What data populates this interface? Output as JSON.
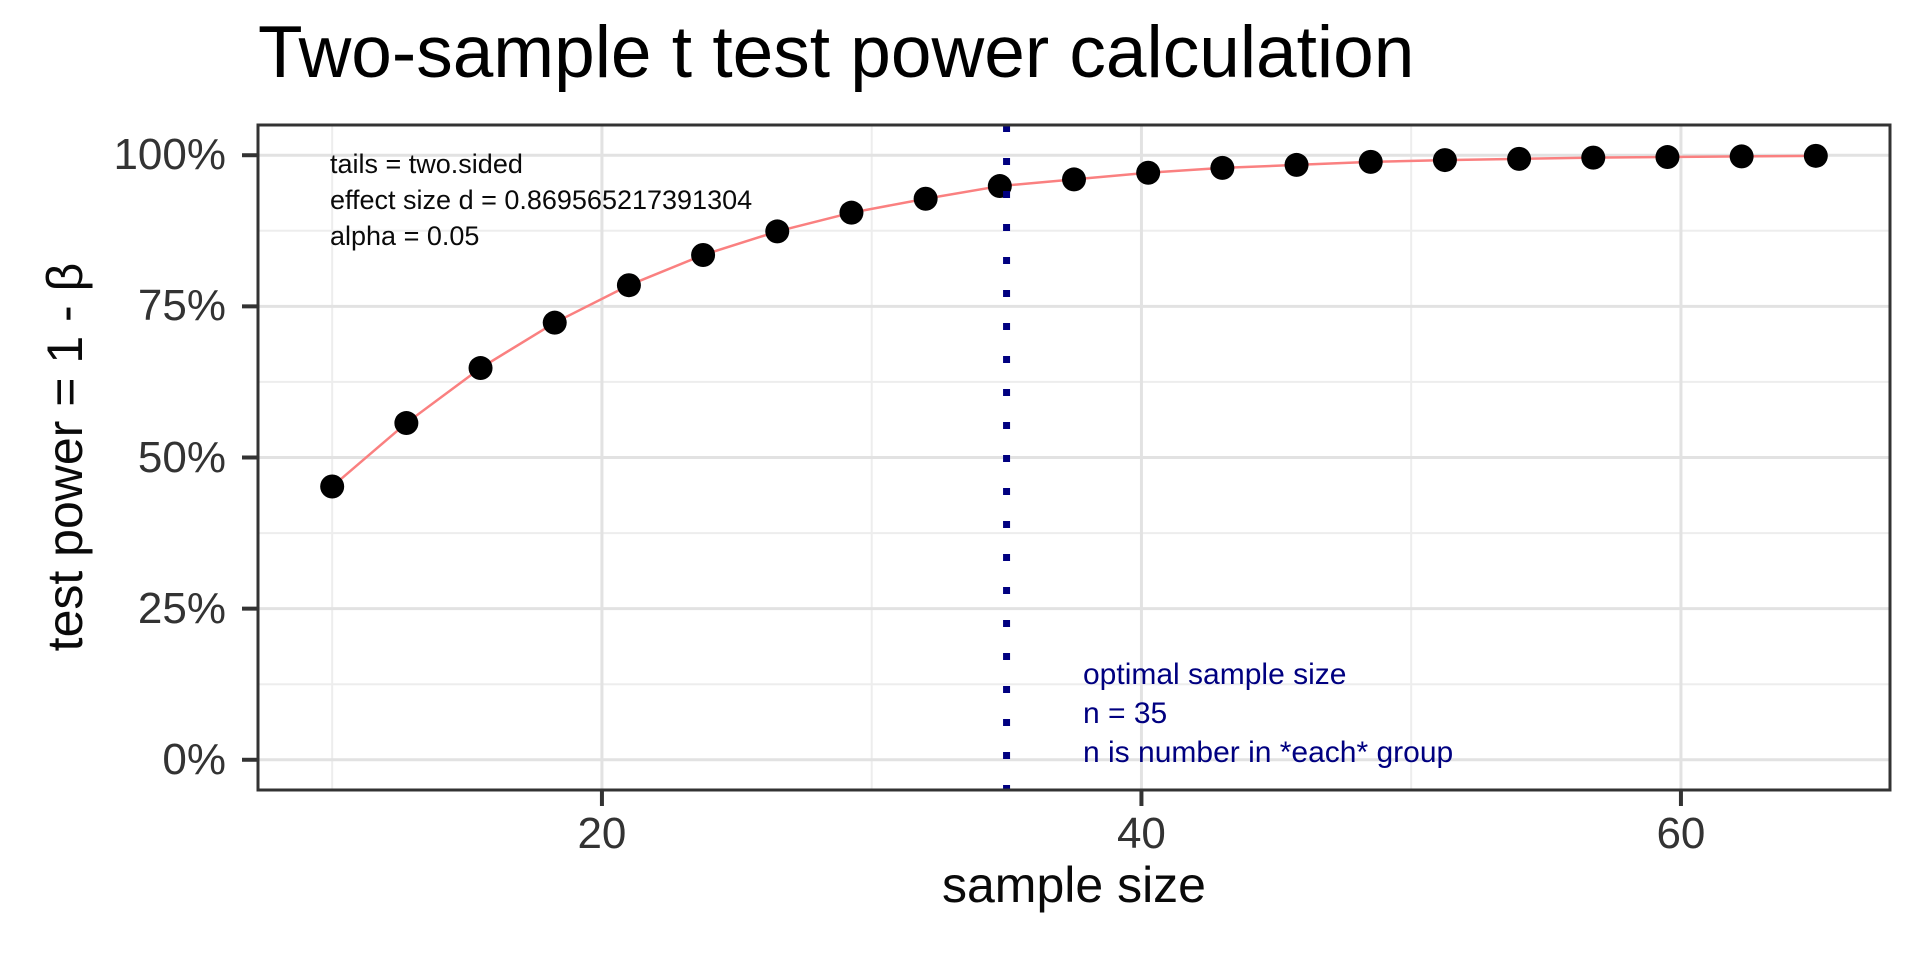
{
  "title": "Two-sample t test power calculation",
  "chart_data": {
    "type": "line",
    "title": "Two-sample t test power calculation",
    "xlabel": "sample size",
    "ylabel": "test power = 1 - β",
    "x": [
      10,
      12.75,
      15.5,
      18.25,
      21,
      23.75,
      26.5,
      29.25,
      32,
      34.75,
      37.5,
      40.25,
      43,
      45.75,
      48.5,
      51.25,
      54,
      56.75,
      59.5,
      62.25,
      65
    ],
    "y": [
      0.452,
      0.557,
      0.648,
      0.723,
      0.785,
      0.835,
      0.874,
      0.905,
      0.928,
      0.949,
      0.96,
      0.971,
      0.979,
      0.984,
      0.989,
      0.992,
      0.994,
      0.996,
      0.997,
      0.998,
      0.999
    ],
    "xlim": [
      7.25,
      67.75
    ],
    "ylim": [
      -0.05,
      1.05
    ],
    "x_major_ticks": [
      {
        "value": 20,
        "label": "20"
      },
      {
        "value": 40,
        "label": "40"
      },
      {
        "value": 60,
        "label": "60"
      }
    ],
    "y_major_ticks": [
      {
        "value": 0,
        "label": "0%"
      },
      {
        "value": 0.25,
        "label": "25%"
      },
      {
        "value": 0.5,
        "label": "50%"
      },
      {
        "value": 0.75,
        "label": "75%"
      },
      {
        "value": 1,
        "label": "100%"
      }
    ],
    "x_minor_ticks": [
      10,
      30,
      50
    ],
    "y_minor_ticks": [
      0.125,
      0.375,
      0.625,
      0.875
    ],
    "vline": {
      "x": 35,
      "style": "dotted"
    },
    "grid": true,
    "legend_position": "none"
  },
  "annotations": {
    "params": [
      "tails = two.sided",
      "effect size d = 0.869565217391304",
      "alpha = 0.05"
    ],
    "optimal": [
      "optimal sample size",
      "n = 35",
      "n is number in *each* group"
    ]
  },
  "colors": {
    "line": "#FA8080",
    "point": "#000000",
    "vline": "#000080",
    "optimal_text": "#000080",
    "param_text": "#0a0a0a",
    "grid_major": "#E2E2E2",
    "grid_minor": "#EDEDED",
    "panel_border": "#333333",
    "tick": "#333333",
    "tick_label": "#333333",
    "panel_bg": "#FFFFFF"
  }
}
